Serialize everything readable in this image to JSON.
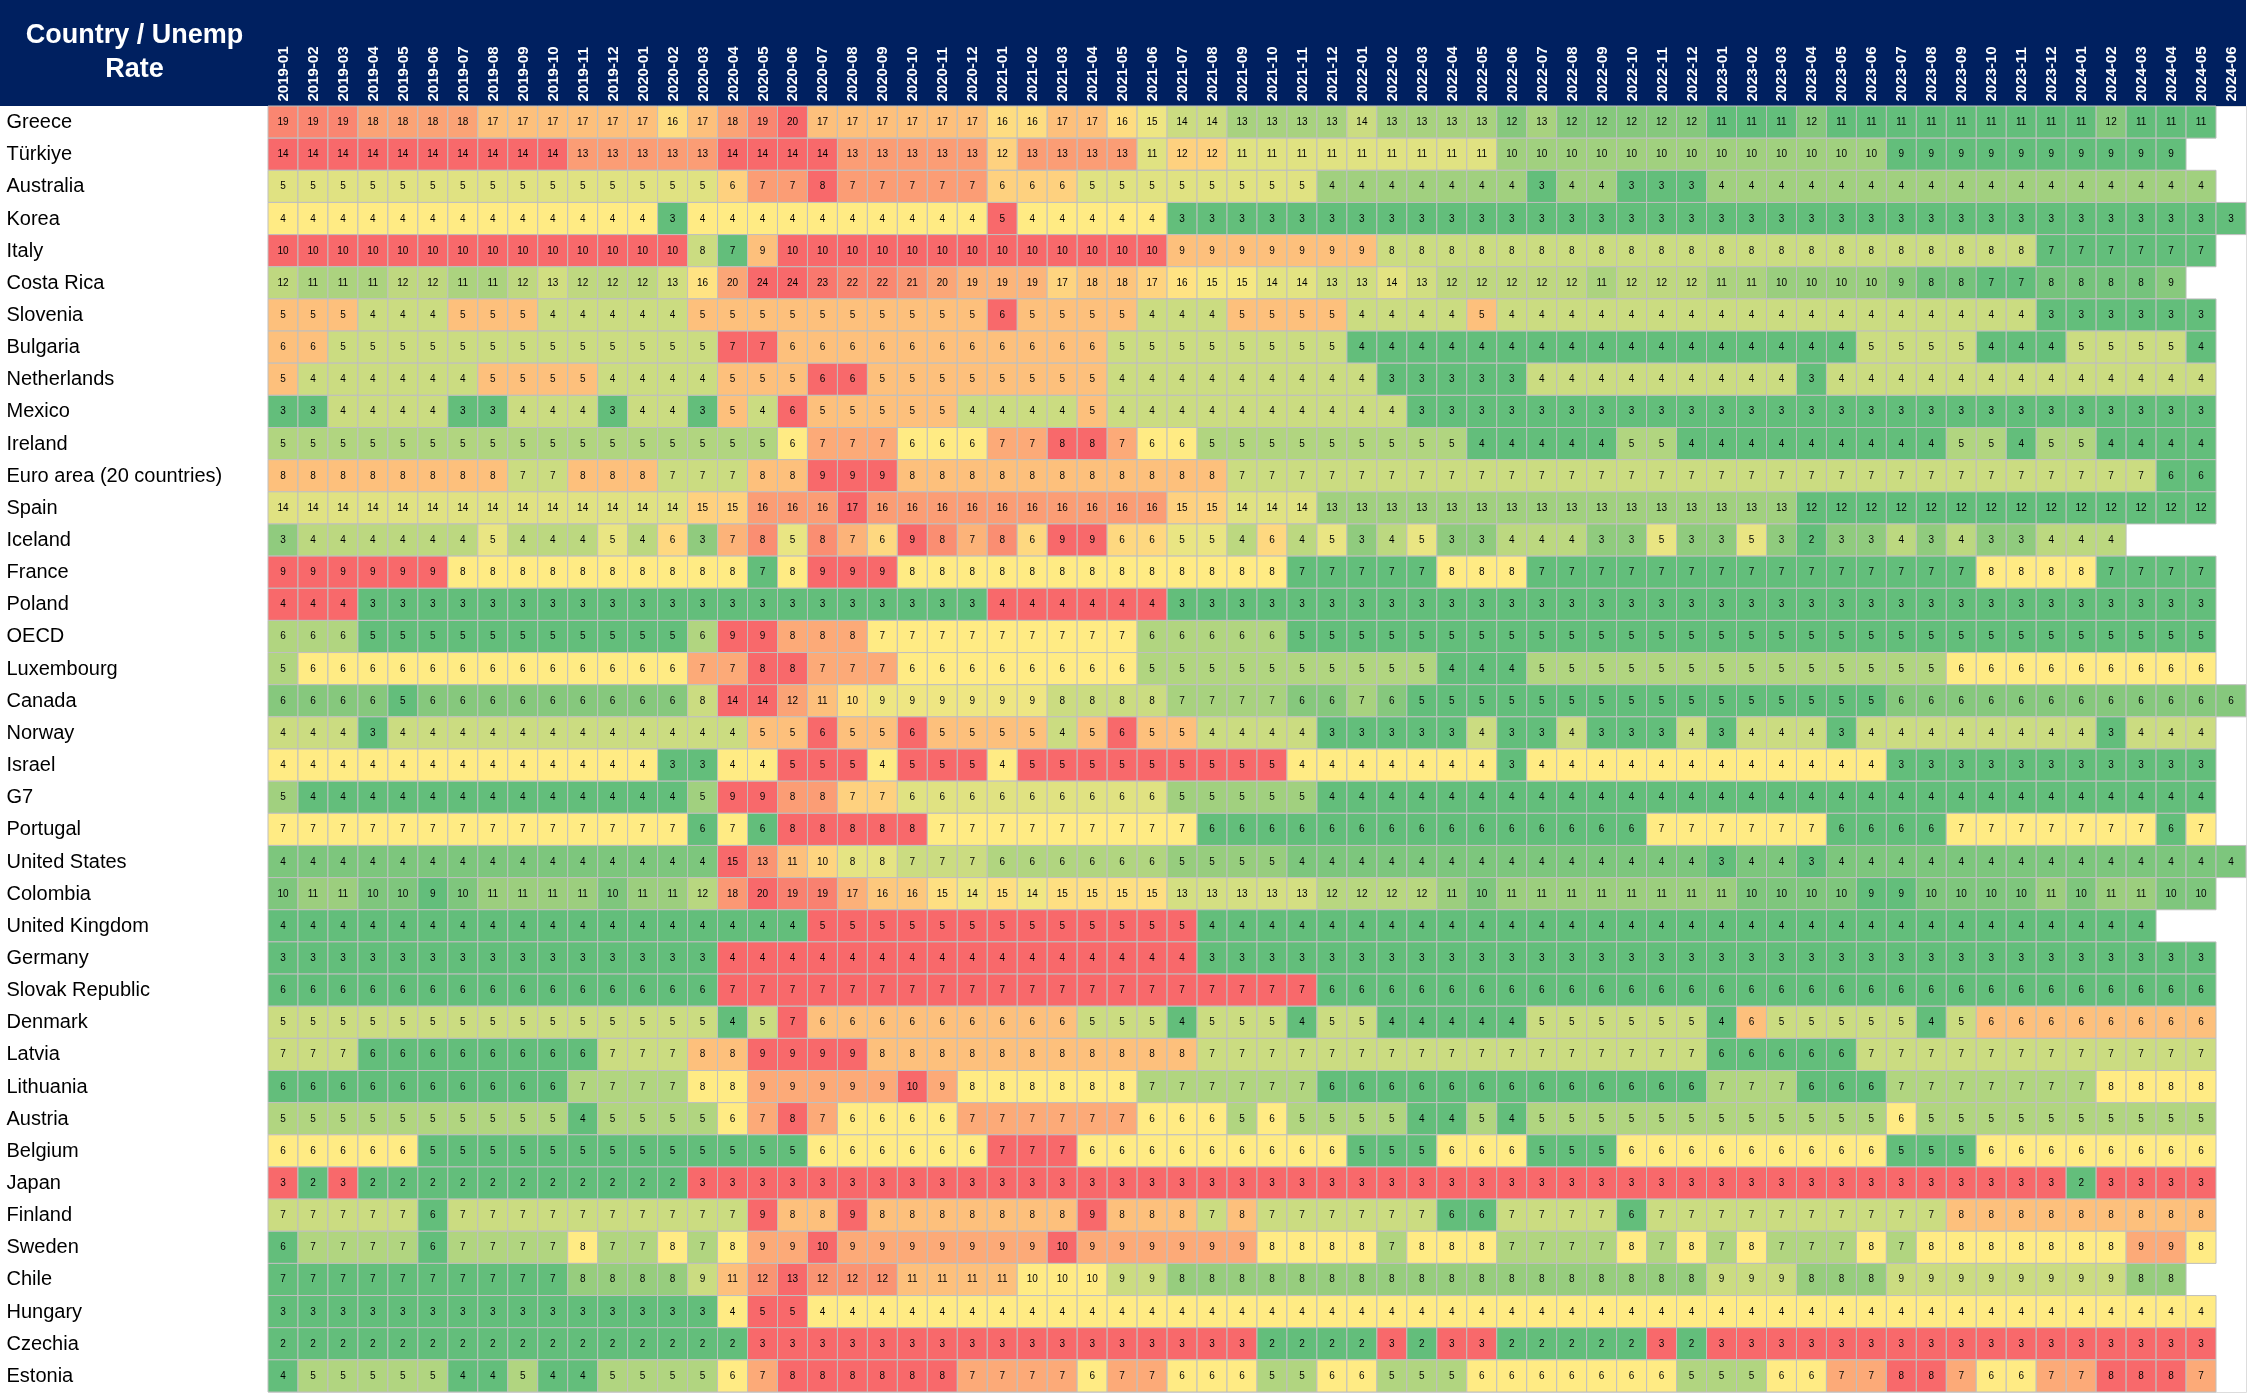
{
  "chart_data": {
    "type": "heatmap",
    "data_labels": true,
    "ylabel": "Country / Unemp Rate",
    "colors": [
      "#63be7b",
      "#ffeb84",
      "#f8696b"
    ],
    "categories": [
      "2019-01",
      "2019-02",
      "2019-03",
      "2019-04",
      "2019-05",
      "2019-06",
      "2019-07",
      "2019-08",
      "2019-09",
      "2019-10",
      "2019-11",
      "2019-12",
      "2020-01",
      "2020-02",
      "2020-03",
      "2020-04",
      "2020-05",
      "2020-06",
      "2020-07",
      "2020-08",
      "2020-09",
      "2020-10",
      "2020-11",
      "2020-12",
      "2021-01",
      "2021-02",
      "2021-03",
      "2021-04",
      "2021-05",
      "2021-06",
      "2021-07",
      "2021-08",
      "2021-09",
      "2021-10",
      "2021-11",
      "2021-12",
      "2022-01",
      "2022-02",
      "2022-03",
      "2022-04",
      "2022-05",
      "2022-06",
      "2022-07",
      "2022-08",
      "2022-09",
      "2022-10",
      "2022-11",
      "2022-12",
      "2023-01",
      "2023-02",
      "2023-03",
      "2023-04",
      "2023-05",
      "2023-06",
      "2023-07",
      "2023-08",
      "2023-09",
      "2023-10",
      "2023-11",
      "2023-12",
      "2024-01",
      "2024-02",
      "2024-03",
      "2024-04",
      "2024-05",
      "2024-06"
    ],
    "y_categories": [
      "Greece",
      "Türkiye",
      "Australia",
      "Korea",
      "Italy",
      "Costa Rica",
      "Slovenia",
      "Bulgaria",
      "Netherlands",
      "Mexico",
      "Ireland",
      "Euro area (20 countries)",
      "Spain",
      "Iceland",
      "France",
      "Poland",
      "OECD",
      "Luxembourg",
      "Canada",
      "Norway",
      "Israel",
      "G7",
      "Portugal",
      "United States",
      "Colombia",
      "United Kingdom",
      "Germany",
      "Slovak Republic",
      "Denmark",
      "Latvia",
      "Lithuania",
      "Austria",
      "Belgium",
      "Japan",
      "Finland",
      "Sweden",
      "Chile",
      "Hungary",
      "Czechia",
      "Estonia"
    ],
    "cells": [
      [
        19,
        19,
        19,
        18,
        18,
        18,
        18,
        17,
        17,
        17,
        17,
        17,
        17,
        16,
        17,
        18,
        19,
        20,
        17,
        17,
        17,
        17,
        17,
        17,
        16,
        16,
        17,
        17,
        16,
        15,
        14,
        14,
        13,
        13,
        13,
        13,
        14,
        13,
        13,
        13,
        13,
        12,
        13,
        12,
        12,
        12,
        12,
        12,
        11,
        11,
        11,
        12,
        11,
        11,
        11,
        11,
        11,
        11,
        11,
        11,
        11,
        12,
        11,
        11,
        11,
        null
      ],
      [
        14,
        14,
        14,
        14,
        14,
        14,
        14,
        14,
        14,
        14,
        13,
        13,
        13,
        13,
        13,
        14,
        14,
        14,
        14,
        13,
        13,
        13,
        13,
        13,
        12,
        13,
        13,
        13,
        13,
        11,
        12,
        12,
        11,
        11,
        11,
        11,
        11,
        11,
        11,
        11,
        11,
        10,
        10,
        10,
        10,
        10,
        10,
        10,
        10,
        10,
        10,
        10,
        10,
        10,
        9,
        9,
        9,
        9,
        9,
        9,
        9,
        9,
        9,
        9,
        null,
        null
      ],
      [
        5,
        5,
        5,
        5,
        5,
        5,
        5,
        5,
        5,
        5,
        5,
        5,
        5,
        5,
        5,
        6,
        7,
        7,
        8,
        7,
        7,
        7,
        7,
        7,
        6,
        6,
        6,
        5,
        5,
        5,
        5,
        5,
        5,
        5,
        5,
        4,
        4,
        4,
        4,
        4,
        4,
        4,
        3,
        4,
        4,
        3,
        3,
        3,
        4,
        4,
        4,
        4,
        4,
        4,
        4,
        4,
        4,
        4,
        4,
        4,
        4,
        4,
        4,
        4,
        4,
        null
      ],
      [
        4,
        4,
        4,
        4,
        4,
        4,
        4,
        4,
        4,
        4,
        4,
        4,
        4,
        3,
        4,
        4,
        4,
        4,
        4,
        4,
        4,
        4,
        4,
        4,
        5,
        4,
        4,
        4,
        4,
        4,
        3,
        3,
        3,
        3,
        3,
        3,
        3,
        3,
        3,
        3,
        3,
        3,
        3,
        3,
        3,
        3,
        3,
        3,
        3,
        3,
        3,
        3,
        3,
        3,
        3,
        3,
        3,
        3,
        3,
        3,
        3,
        3,
        3,
        3,
        3,
        3
      ],
      [
        10,
        10,
        10,
        10,
        10,
        10,
        10,
        10,
        10,
        10,
        10,
        10,
        10,
        10,
        8,
        7,
        9,
        10,
        10,
        10,
        10,
        10,
        10,
        10,
        10,
        10,
        10,
        10,
        10,
        10,
        9,
        9,
        9,
        9,
        9,
        9,
        9,
        8,
        8,
        8,
        8,
        8,
        8,
        8,
        8,
        8,
        8,
        8,
        8,
        8,
        8,
        8,
        8,
        8,
        8,
        8,
        8,
        8,
        8,
        7,
        7,
        7,
        7,
        7,
        7,
        null
      ],
      [
        12,
        11,
        11,
        11,
        12,
        12,
        11,
        11,
        12,
        13,
        12,
        12,
        12,
        13,
        16,
        20,
        24,
        24,
        23,
        22,
        22,
        21,
        20,
        19,
        19,
        19,
        17,
        18,
        18,
        17,
        16,
        15,
        15,
        14,
        14,
        13,
        13,
        14,
        13,
        12,
        12,
        12,
        12,
        12,
        11,
        12,
        12,
        12,
        11,
        11,
        10,
        10,
        10,
        10,
        9,
        8,
        8,
        7,
        7,
        8,
        8,
        8,
        8,
        9,
        null,
        null
      ],
      [
        5,
        5,
        5,
        4,
        4,
        4,
        5,
        5,
        5,
        4,
        4,
        4,
        4,
        4,
        5,
        5,
        5,
        5,
        5,
        5,
        5,
        5,
        5,
        5,
        6,
        5,
        5,
        5,
        5,
        4,
        4,
        4,
        5,
        5,
        5,
        5,
        4,
        4,
        4,
        4,
        5,
        4,
        4,
        4,
        4,
        4,
        4,
        4,
        4,
        4,
        4,
        4,
        4,
        4,
        4,
        4,
        4,
        4,
        4,
        3,
        3,
        3,
        3,
        3,
        3,
        null
      ],
      [
        6,
        6,
        5,
        5,
        5,
        5,
        5,
        5,
        5,
        5,
        5,
        5,
        5,
        5,
        5,
        7,
        7,
        6,
        6,
        6,
        6,
        6,
        6,
        6,
        6,
        6,
        6,
        6,
        5,
        5,
        5,
        5,
        5,
        5,
        5,
        5,
        4,
        4,
        4,
        4,
        4,
        4,
        4,
        4,
        4,
        4,
        4,
        4,
        4,
        4,
        4,
        4,
        4,
        5,
        5,
        5,
        5,
        4,
        4,
        4,
        5,
        5,
        5,
        5,
        4,
        null
      ],
      [
        5,
        4,
        4,
        4,
        4,
        4,
        4,
        5,
        5,
        5,
        5,
        4,
        4,
        4,
        4,
        5,
        5,
        5,
        6,
        6,
        5,
        5,
        5,
        5,
        5,
        5,
        5,
        5,
        4,
        4,
        4,
        4,
        4,
        4,
        4,
        4,
        4,
        3,
        3,
        3,
        3,
        3,
        4,
        4,
        4,
        4,
        4,
        4,
        4,
        4,
        4,
        3,
        4,
        4,
        4,
        4,
        4,
        4,
        4,
        4,
        4,
        4,
        4,
        4,
        4,
        null
      ],
      [
        3,
        3,
        4,
        4,
        4,
        4,
        3,
        3,
        4,
        4,
        4,
        3,
        4,
        4,
        3,
        5,
        4,
        6,
        5,
        5,
        5,
        5,
        5,
        4,
        4,
        4,
        4,
        5,
        4,
        4,
        4,
        4,
        4,
        4,
        4,
        4,
        4,
        4,
        3,
        3,
        3,
        3,
        3,
        3,
        3,
        3,
        3,
        3,
        3,
        3,
        3,
        3,
        3,
        3,
        3,
        3,
        3,
        3,
        3,
        3,
        3,
        3,
        3,
        3,
        3,
        null
      ],
      [
        5,
        5,
        5,
        5,
        5,
        5,
        5,
        5,
        5,
        5,
        5,
        5,
        5,
        5,
        5,
        5,
        5,
        6,
        7,
        7,
        7,
        6,
        6,
        6,
        7,
        7,
        8,
        8,
        7,
        6,
        6,
        5,
        5,
        5,
        5,
        5,
        5,
        5,
        5,
        5,
        4,
        4,
        4,
        4,
        4,
        5,
        5,
        4,
        4,
        4,
        4,
        4,
        4,
        4,
        4,
        4,
        5,
        5,
        4,
        5,
        5,
        4,
        4,
        4,
        4,
        null
      ],
      [
        8,
        8,
        8,
        8,
        8,
        8,
        8,
        8,
        7,
        7,
        8,
        8,
        8,
        7,
        7,
        7,
        8,
        8,
        9,
        9,
        9,
        8,
        8,
        8,
        8,
        8,
        8,
        8,
        8,
        8,
        8,
        8,
        7,
        7,
        7,
        7,
        7,
        7,
        7,
        7,
        7,
        7,
        7,
        7,
        7,
        7,
        7,
        7,
        7,
        7,
        7,
        7,
        7,
        7,
        7,
        7,
        7,
        7,
        7,
        7,
        7,
        7,
        7,
        6,
        6,
        null
      ],
      [
        14,
        14,
        14,
        14,
        14,
        14,
        14,
        14,
        14,
        14,
        14,
        14,
        14,
        14,
        15,
        15,
        16,
        16,
        16,
        17,
        16,
        16,
        16,
        16,
        16,
        16,
        16,
        16,
        16,
        16,
        15,
        15,
        14,
        14,
        14,
        13,
        13,
        13,
        13,
        13,
        13,
        13,
        13,
        13,
        13,
        13,
        13,
        13,
        13,
        13,
        13,
        12,
        12,
        12,
        12,
        12,
        12,
        12,
        12,
        12,
        12,
        12,
        12,
        12,
        12,
        null
      ],
      [
        3,
        4,
        4,
        4,
        4,
        4,
        4,
        5,
        4,
        4,
        4,
        5,
        4,
        6,
        3,
        7,
        8,
        5,
        8,
        7,
        6,
        9,
        8,
        7,
        8,
        6,
        9,
        9,
        6,
        6,
        5,
        5,
        4,
        6,
        4,
        5,
        3,
        4,
        5,
        3,
        3,
        4,
        4,
        4,
        3,
        3,
        5,
        3,
        3,
        5,
        3,
        2,
        3,
        3,
        4,
        3,
        4,
        3,
        3,
        4,
        4,
        4,
        null,
        null,
        null,
        null
      ],
      [
        9,
        9,
        9,
        9,
        9,
        9,
        8,
        8,
        8,
        8,
        8,
        8,
        8,
        8,
        8,
        8,
        7,
        8,
        9,
        9,
        9,
        8,
        8,
        8,
        8,
        8,
        8,
        8,
        8,
        8,
        8,
        8,
        8,
        8,
        7,
        7,
        7,
        7,
        7,
        8,
        8,
        8,
        7,
        7,
        7,
        7,
        7,
        7,
        7,
        7,
        7,
        7,
        7,
        7,
        7,
        7,
        7,
        8,
        8,
        8,
        8,
        7,
        7,
        7,
        7,
        null
      ],
      [
        4,
        4,
        4,
        3,
        3,
        3,
        3,
        3,
        3,
        3,
        3,
        3,
        3,
        3,
        3,
        3,
        3,
        3,
        3,
        3,
        3,
        3,
        3,
        3,
        4,
        4,
        4,
        4,
        4,
        4,
        3,
        3,
        3,
        3,
        3,
        3,
        3,
        3,
        3,
        3,
        3,
        3,
        3,
        3,
        3,
        3,
        3,
        3,
        3,
        3,
        3,
        3,
        3,
        3,
        3,
        3,
        3,
        3,
        3,
        3,
        3,
        3,
        3,
        3,
        3,
        null
      ],
      [
        6,
        6,
        6,
        5,
        5,
        5,
        5,
        5,
        5,
        5,
        5,
        5,
        5,
        5,
        6,
        9,
        9,
        8,
        8,
        8,
        7,
        7,
        7,
        7,
        7,
        7,
        7,
        7,
        7,
        6,
        6,
        6,
        6,
        6,
        5,
        5,
        5,
        5,
        5,
        5,
        5,
        5,
        5,
        5,
        5,
        5,
        5,
        5,
        5,
        5,
        5,
        5,
        5,
        5,
        5,
        5,
        5,
        5,
        5,
        5,
        5,
        5,
        5,
        5,
        5,
        null
      ],
      [
        5,
        6,
        6,
        6,
        6,
        6,
        6,
        6,
        6,
        6,
        6,
        6,
        6,
        6,
        7,
        7,
        8,
        8,
        7,
        7,
        7,
        6,
        6,
        6,
        6,
        6,
        6,
        6,
        6,
        5,
        5,
        5,
        5,
        5,
        5,
        5,
        5,
        5,
        5,
        4,
        4,
        4,
        5,
        5,
        5,
        5,
        5,
        5,
        5,
        5,
        5,
        5,
        5,
        5,
        5,
        5,
        6,
        6,
        6,
        6,
        6,
        6,
        6,
        6,
        6,
        null
      ],
      [
        6,
        6,
        6,
        6,
        5,
        6,
        6,
        6,
        6,
        6,
        6,
        6,
        6,
        6,
        8,
        14,
        14,
        12,
        11,
        10,
        9,
        9,
        9,
        9,
        9,
        9,
        8,
        8,
        8,
        8,
        7,
        7,
        7,
        7,
        6,
        6,
        7,
        6,
        5,
        5,
        5,
        5,
        5,
        5,
        5,
        5,
        5,
        5,
        5,
        5,
        5,
        5,
        5,
        5,
        6,
        6,
        6,
        6,
        6,
        6,
        6,
        6,
        6,
        6,
        6,
        6
      ],
      [
        4,
        4,
        4,
        3,
        4,
        4,
        4,
        4,
        4,
        4,
        4,
        4,
        4,
        4,
        4,
        4,
        5,
        5,
        6,
        5,
        5,
        6,
        5,
        5,
        5,
        5,
        4,
        5,
        6,
        5,
        5,
        4,
        4,
        4,
        4,
        3,
        3,
        3,
        3,
        3,
        4,
        3,
        3,
        4,
        3,
        3,
        3,
        4,
        3,
        4,
        4,
        4,
        3,
        4,
        4,
        4,
        4,
        4,
        4,
        4,
        4,
        3,
        4,
        4,
        4,
        null
      ],
      [
        4,
        4,
        4,
        4,
        4,
        4,
        4,
        4,
        4,
        4,
        4,
        4,
        4,
        3,
        3,
        4,
        4,
        5,
        5,
        5,
        4,
        5,
        5,
        5,
        4,
        5,
        5,
        5,
        5,
        5,
        5,
        5,
        5,
        5,
        4,
        4,
        4,
        4,
        4,
        4,
        4,
        3,
        4,
        4,
        4,
        4,
        4,
        4,
        4,
        4,
        4,
        4,
        4,
        4,
        3,
        3,
        3,
        3,
        3,
        3,
        3,
        3,
        3,
        3,
        3,
        null
      ],
      [
        5,
        4,
        4,
        4,
        4,
        4,
        4,
        4,
        4,
        4,
        4,
        4,
        4,
        4,
        5,
        9,
        9,
        8,
        8,
        7,
        7,
        6,
        6,
        6,
        6,
        6,
        6,
        6,
        6,
        6,
        5,
        5,
        5,
        5,
        5,
        4,
        4,
        4,
        4,
        4,
        4,
        4,
        4,
        4,
        4,
        4,
        4,
        4,
        4,
        4,
        4,
        4,
        4,
        4,
        4,
        4,
        4,
        4,
        4,
        4,
        4,
        4,
        4,
        4,
        4,
        null
      ],
      [
        7,
        7,
        7,
        7,
        7,
        7,
        7,
        7,
        7,
        7,
        7,
        7,
        7,
        7,
        6,
        7,
        6,
        8,
        8,
        8,
        8,
        8,
        7,
        7,
        7,
        7,
        7,
        7,
        7,
        7,
        7,
        6,
        6,
        6,
        6,
        6,
        6,
        6,
        6,
        6,
        6,
        6,
        6,
        6,
        6,
        6,
        7,
        7,
        7,
        7,
        7,
        7,
        6,
        6,
        6,
        6,
        7,
        7,
        7,
        7,
        7,
        7,
        7,
        6,
        7,
        null
      ],
      [
        4,
        4,
        4,
        4,
        4,
        4,
        4,
        4,
        4,
        4,
        4,
        4,
        4,
        4,
        4,
        15,
        13,
        11,
        10,
        8,
        8,
        7,
        7,
        7,
        6,
        6,
        6,
        6,
        6,
        6,
        5,
        5,
        5,
        5,
        4,
        4,
        4,
        4,
        4,
        4,
        4,
        4,
        4,
        4,
        4,
        4,
        4,
        4,
        3,
        4,
        4,
        3,
        4,
        4,
        4,
        4,
        4,
        4,
        4,
        4,
        4,
        4,
        4,
        4,
        4,
        4
      ],
      [
        10,
        11,
        11,
        10,
        10,
        9,
        10,
        11,
        11,
        11,
        11,
        10,
        11,
        11,
        12,
        18,
        20,
        19,
        19,
        17,
        16,
        16,
        15,
        14,
        15,
        14,
        15,
        15,
        15,
        15,
        13,
        13,
        13,
        13,
        13,
        12,
        12,
        12,
        12,
        11,
        10,
        11,
        11,
        11,
        11,
        11,
        11,
        11,
        11,
        10,
        10,
        10,
        10,
        9,
        9,
        10,
        10,
        10,
        10,
        11,
        10,
        11,
        11,
        10,
        10,
        null
      ],
      [
        4,
        4,
        4,
        4,
        4,
        4,
        4,
        4,
        4,
        4,
        4,
        4,
        4,
        4,
        4,
        4,
        4,
        4,
        5,
        5,
        5,
        5,
        5,
        5,
        5,
        5,
        5,
        5,
        5,
        5,
        5,
        4,
        4,
        4,
        4,
        4,
        4,
        4,
        4,
        4,
        4,
        4,
        4,
        4,
        4,
        4,
        4,
        4,
        4,
        4,
        4,
        4,
        4,
        4,
        4,
        4,
        4,
        4,
        4,
        4,
        4,
        4,
        4,
        null,
        null,
        null
      ],
      [
        3,
        3,
        3,
        3,
        3,
        3,
        3,
        3,
        3,
        3,
        3,
        3,
        3,
        3,
        3,
        4,
        4,
        4,
        4,
        4,
        4,
        4,
        4,
        4,
        4,
        4,
        4,
        4,
        4,
        4,
        4,
        3,
        3,
        3,
        3,
        3,
        3,
        3,
        3,
        3,
        3,
        3,
        3,
        3,
        3,
        3,
        3,
        3,
        3,
        3,
        3,
        3,
        3,
        3,
        3,
        3,
        3,
        3,
        3,
        3,
        3,
        3,
        3,
        3,
        3,
        null
      ],
      [
        6,
        6,
        6,
        6,
        6,
        6,
        6,
        6,
        6,
        6,
        6,
        6,
        6,
        6,
        6,
        7,
        7,
        7,
        7,
        7,
        7,
        7,
        7,
        7,
        7,
        7,
        7,
        7,
        7,
        7,
        7,
        7,
        7,
        7,
        7,
        6,
        6,
        6,
        6,
        6,
        6,
        6,
        6,
        6,
        6,
        6,
        6,
        6,
        6,
        6,
        6,
        6,
        6,
        6,
        6,
        6,
        6,
        6,
        6,
        6,
        6,
        6,
        6,
        6,
        6,
        null
      ],
      [
        5,
        5,
        5,
        5,
        5,
        5,
        5,
        5,
        5,
        5,
        5,
        5,
        5,
        5,
        5,
        4,
        5,
        7,
        6,
        6,
        6,
        6,
        6,
        6,
        6,
        6,
        6,
        5,
        5,
        5,
        4,
        5,
        5,
        5,
        4,
        5,
        5,
        4,
        4,
        4,
        4,
        4,
        5,
        5,
        5,
        5,
        5,
        5,
        4,
        6,
        5,
        5,
        5,
        5,
        5,
        4,
        5,
        6,
        6,
        6,
        6,
        6,
        6,
        6,
        6,
        null
      ],
      [
        7,
        7,
        7,
        6,
        6,
        6,
        6,
        6,
        6,
        6,
        6,
        7,
        7,
        7,
        8,
        8,
        9,
        9,
        9,
        9,
        8,
        8,
        8,
        8,
        8,
        8,
        8,
        8,
        8,
        8,
        8,
        7,
        7,
        7,
        7,
        7,
        7,
        7,
        7,
        7,
        7,
        7,
        7,
        7,
        7,
        7,
        7,
        7,
        6,
        6,
        6,
        6,
        6,
        7,
        7,
        7,
        7,
        7,
        7,
        7,
        7,
        7,
        7,
        7,
        7,
        null
      ],
      [
        6,
        6,
        6,
        6,
        6,
        6,
        6,
        6,
        6,
        6,
        7,
        7,
        7,
        7,
        8,
        8,
        9,
        9,
        9,
        9,
        9,
        10,
        9,
        8,
        8,
        8,
        8,
        8,
        8,
        7,
        7,
        7,
        7,
        7,
        7,
        6,
        6,
        6,
        6,
        6,
        6,
        6,
        6,
        6,
        6,
        6,
        6,
        6,
        7,
        7,
        7,
        6,
        6,
        6,
        7,
        7,
        7,
        7,
        7,
        7,
        7,
        8,
        8,
        8,
        8,
        null
      ],
      [
        5,
        5,
        5,
        5,
        5,
        5,
        5,
        5,
        5,
        5,
        4,
        5,
        5,
        5,
        5,
        6,
        7,
        8,
        7,
        6,
        6,
        6,
        6,
        7,
        7,
        7,
        7,
        7,
        7,
        6,
        6,
        6,
        5,
        6,
        5,
        5,
        5,
        5,
        4,
        4,
        5,
        4,
        5,
        5,
        5,
        5,
        5,
        5,
        5,
        5,
        5,
        5,
        5,
        5,
        6,
        5,
        5,
        5,
        5,
        5,
        5,
        5,
        5,
        5,
        5,
        null
      ],
      [
        6,
        6,
        6,
        6,
        6,
        5,
        5,
        5,
        5,
        5,
        5,
        5,
        5,
        5,
        5,
        5,
        5,
        5,
        6,
        6,
        6,
        6,
        6,
        6,
        7,
        7,
        7,
        6,
        6,
        6,
        6,
        6,
        6,
        6,
        6,
        6,
        5,
        5,
        5,
        6,
        6,
        6,
        5,
        5,
        5,
        6,
        6,
        6,
        6,
        6,
        6,
        6,
        6,
        6,
        5,
        5,
        5,
        6,
        6,
        6,
        6,
        6,
        6,
        6,
        6,
        null
      ],
      [
        3,
        2,
        3,
        2,
        2,
        2,
        2,
        2,
        2,
        2,
        2,
        2,
        2,
        2,
        3,
        3,
        3,
        3,
        3,
        3,
        3,
        3,
        3,
        3,
        3,
        3,
        3,
        3,
        3,
        3,
        3,
        3,
        3,
        3,
        3,
        3,
        3,
        3,
        3,
        3,
        3,
        3,
        3,
        3,
        3,
        3,
        3,
        3,
        3,
        3,
        3,
        3,
        3,
        3,
        3,
        3,
        3,
        3,
        3,
        3,
        2,
        3,
        3,
        3,
        3,
        null
      ],
      [
        7,
        7,
        7,
        7,
        7,
        6,
        7,
        7,
        7,
        7,
        7,
        7,
        7,
        7,
        7,
        7,
        9,
        8,
        8,
        9,
        8,
        8,
        8,
        8,
        8,
        8,
        8,
        9,
        8,
        8,
        8,
        7,
        8,
        7,
        7,
        7,
        7,
        7,
        7,
        6,
        6,
        7,
        7,
        7,
        7,
        6,
        7,
        7,
        7,
        7,
        7,
        7,
        7,
        7,
        7,
        7,
        8,
        8,
        8,
        8,
        8,
        8,
        8,
        8,
        8,
        null
      ],
      [
        6,
        7,
        7,
        7,
        7,
        6,
        7,
        7,
        7,
        7,
        8,
        7,
        7,
        8,
        7,
        8,
        9,
        9,
        10,
        9,
        9,
        9,
        9,
        9,
        9,
        9,
        10,
        9,
        9,
        9,
        9,
        9,
        9,
        8,
        8,
        8,
        8,
        7,
        8,
        8,
        8,
        7,
        7,
        7,
        7,
        8,
        7,
        8,
        7,
        8,
        7,
        7,
        7,
        8,
        7,
        8,
        8,
        8,
        8,
        8,
        8,
        8,
        9,
        9,
        8,
        null
      ],
      [
        7,
        7,
        7,
        7,
        7,
        7,
        7,
        7,
        7,
        7,
        8,
        8,
        8,
        8,
        9,
        11,
        12,
        13,
        12,
        12,
        12,
        11,
        11,
        11,
        11,
        10,
        10,
        10,
        9,
        9,
        8,
        8,
        8,
        8,
        8,
        8,
        8,
        8,
        8,
        8,
        8,
        8,
        8,
        8,
        8,
        8,
        8,
        8,
        9,
        9,
        9,
        8,
        8,
        8,
        9,
        9,
        9,
        9,
        9,
        9,
        9,
        9,
        8,
        8,
        null,
        null
      ],
      [
        3,
        3,
        3,
        3,
        3,
        3,
        3,
        3,
        3,
        3,
        3,
        3,
        3,
        3,
        3,
        4,
        5,
        5,
        4,
        4,
        4,
        4,
        4,
        4,
        4,
        4,
        4,
        4,
        4,
        4,
        4,
        4,
        4,
        4,
        4,
        4,
        4,
        4,
        4,
        4,
        4,
        4,
        4,
        4,
        4,
        4,
        4,
        4,
        4,
        4,
        4,
        4,
        4,
        4,
        4,
        4,
        4,
        4,
        4,
        4,
        4,
        4,
        4,
        4,
        4,
        null
      ],
      [
        2,
        2,
        2,
        2,
        2,
        2,
        2,
        2,
        2,
        2,
        2,
        2,
        2,
        2,
        2,
        2,
        3,
        3,
        3,
        3,
        3,
        3,
        3,
        3,
        3,
        3,
        3,
        3,
        3,
        3,
        3,
        3,
        3,
        2,
        2,
        2,
        2,
        3,
        2,
        3,
        3,
        2,
        2,
        2,
        2,
        2,
        3,
        2,
        3,
        3,
        3,
        3,
        3,
        3,
        3,
        3,
        3,
        3,
        3,
        3,
        3,
        3,
        3,
        3,
        3,
        null
      ],
      [
        4,
        5,
        5,
        5,
        5,
        5,
        4,
        4,
        5,
        4,
        4,
        5,
        5,
        5,
        5,
        6,
        7,
        8,
        8,
        8,
        8,
        8,
        8,
        7,
        7,
        7,
        7,
        6,
        7,
        7,
        6,
        6,
        6,
        5,
        5,
        6,
        6,
        5,
        5,
        5,
        6,
        6,
        6,
        6,
        6,
        6,
        6,
        5,
        5,
        5,
        6,
        6,
        7,
        7,
        8,
        8,
        7,
        6,
        6,
        7,
        7,
        8,
        8,
        8,
        7,
        null
      ]
    ]
  }
}
